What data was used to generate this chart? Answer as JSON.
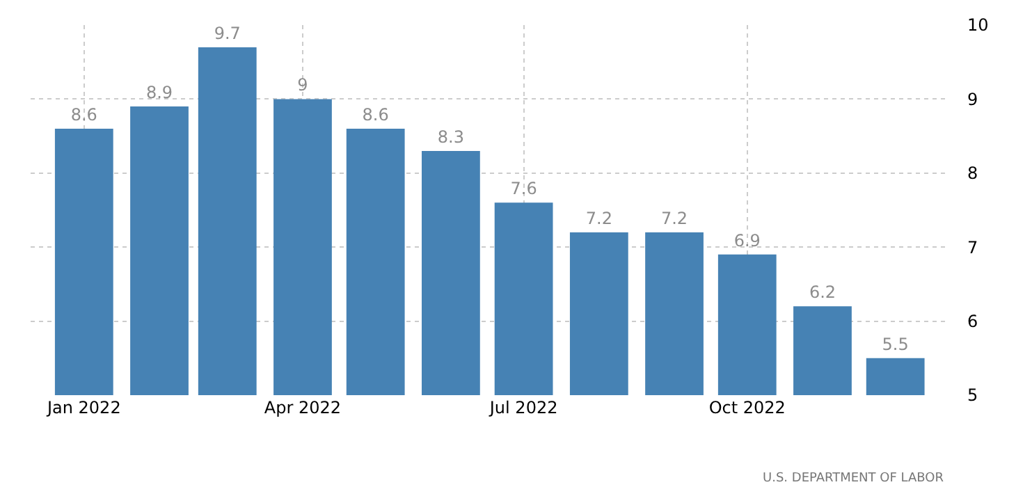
{
  "chart_data": {
    "type": "bar",
    "x": [
      "2022-01",
      "2022-02",
      "2022-03",
      "2022-04",
      "2022-05",
      "2022-06",
      "2022-07",
      "2022-08",
      "2022-09",
      "2022-10",
      "2022-11",
      "2022-12"
    ],
    "values": [
      8.6,
      8.9,
      9.7,
      9,
      8.6,
      8.3,
      7.6,
      7.2,
      7.2,
      6.9,
      6.2,
      5.5
    ],
    "color": "#4682b4",
    "data_labels": true,
    "xlim": [
      "2021-12-10",
      "2022-12-22"
    ],
    "xticks": [
      {
        "value": "2022-01",
        "label": "Jan 2022"
      },
      {
        "value": "2022-04",
        "label": "Apr 2022"
      },
      {
        "value": "2022-07",
        "label": "Jul 2022"
      },
      {
        "value": "2022-10",
        "label": "Oct 2022"
      }
    ],
    "ylim": [
      5,
      10
    ],
    "yticks": [
      5,
      6,
      7,
      8,
      9,
      10
    ],
    "grid": true,
    "annotations": [
      "U.S. DEPARTMENT OF LABOR"
    ]
  }
}
